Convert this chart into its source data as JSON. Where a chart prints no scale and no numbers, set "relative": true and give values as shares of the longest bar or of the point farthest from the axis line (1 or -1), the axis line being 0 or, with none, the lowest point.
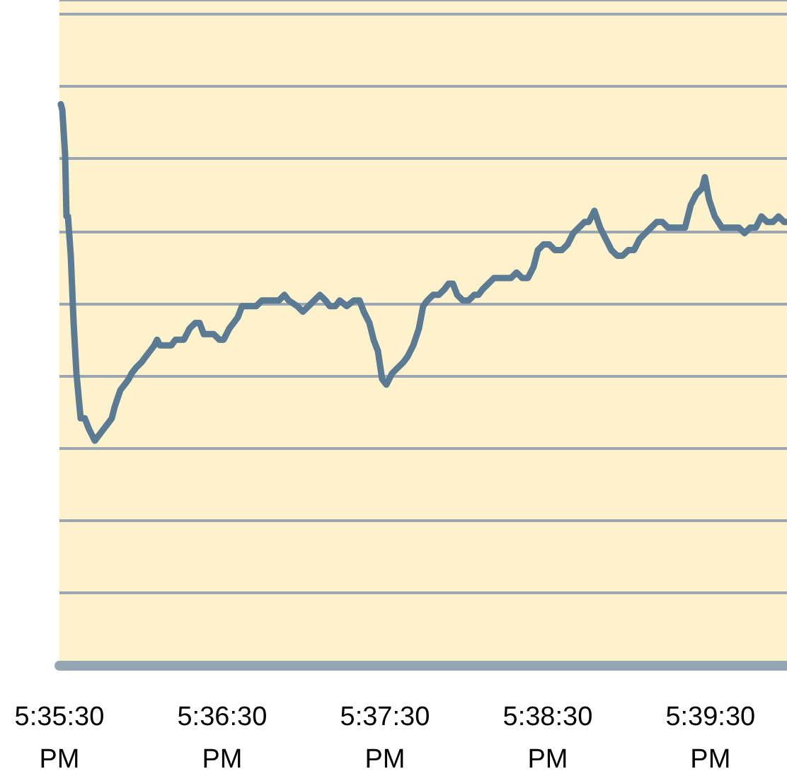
{
  "chart_data": {
    "type": "line",
    "relative": true,
    "grid": "y",
    "marker": "none",
    "line_style": "solid",
    "xlim": [
      17.59167,
      17.66617
    ],
    "xticks": [
      {
        "value": 17.59167,
        "label": "5:35:30 PM"
      },
      {
        "value": 17.60833,
        "label": "5:36:30 PM"
      },
      {
        "value": 17.625,
        "label": "5:37:30 PM"
      },
      {
        "value": 17.64167,
        "label": "5:38:30 PM"
      },
      {
        "value": 17.65833,
        "label": "5:39:30 PM"
      }
    ],
    "x": [
      17.59181,
      17.59196,
      17.59225,
      17.59239,
      17.59254,
      17.59283,
      17.59312,
      17.59341,
      17.59384,
      17.59426,
      17.59471,
      17.59529,
      17.59573,
      17.59616,
      17.5966,
      17.59703,
      17.59732,
      17.5979,
      17.59834,
      17.59877,
      17.59906,
      17.5995,
      17.60008,
      17.60051,
      17.60095,
      17.60138,
      17.60167,
      17.60196,
      17.60254,
      17.60312,
      17.60355,
      17.60399,
      17.60441,
      17.605,
      17.60558,
      17.60602,
      17.60645,
      17.60703,
      17.60747,
      17.60805,
      17.60848,
      17.60906,
      17.6095,
      17.60993,
      17.61037,
      17.61095,
      17.61138,
      17.61182,
      17.6124,
      17.61312,
      17.61355,
      17.61413,
      17.61471,
      17.61515,
      17.61602,
      17.6166,
      17.61718,
      17.61776,
      17.61834,
      17.61892,
      17.61935,
      17.61993,
      17.62037,
      17.62109,
      17.62182,
      17.6224,
      17.62283,
      17.62341,
      17.62384,
      17.62428,
      17.62471,
      17.62515,
      17.62573,
      17.62631,
      17.62689,
      17.62732,
      17.6279,
      17.62848,
      17.62891,
      17.62935,
      17.62993,
      17.63051,
      17.63109,
      17.63152,
      17.63196,
      17.6324,
      17.63298,
      17.63356,
      17.63414,
      17.63457,
      17.635,
      17.63558,
      17.63616,
      17.63674,
      17.63732,
      17.6379,
      17.63848,
      17.63906,
      17.63964,
      17.64022,
      17.64066,
      17.64124,
      17.64182,
      17.6424,
      17.64312,
      17.6437,
      17.64428,
      17.64486,
      17.64544,
      17.64587,
      17.64645,
      17.64703,
      17.64761,
      17.64819,
      17.64877,
      17.64935,
      17.64993,
      17.65051,
      17.65109,
      17.65167,
      17.65225,
      17.65283,
      17.65341,
      17.65399,
      17.65457,
      17.65515,
      17.65573,
      17.65631,
      17.65689,
      17.65747,
      17.65776,
      17.65819,
      17.65877,
      17.6595,
      17.66008,
      17.66066,
      17.66124,
      17.66182,
      17.6624,
      17.66298,
      17.66356,
      17.66414,
      17.66472,
      17.6653,
      17.66588,
      17.66617
    ],
    "series": [
      {
        "color": "#5b7a94",
        "values": [
          1.0,
          0.99,
          0.91,
          0.8,
          0.8,
          0.73,
          0.61,
          0.52,
          0.44,
          0.44,
          0.42,
          0.4,
          0.41,
          0.42,
          0.43,
          0.44,
          0.46,
          0.49,
          0.5,
          0.51,
          0.52,
          0.53,
          0.54,
          0.55,
          0.56,
          0.57,
          0.58,
          0.57,
          0.57,
          0.57,
          0.58,
          0.58,
          0.58,
          0.6,
          0.61,
          0.61,
          0.59,
          0.59,
          0.59,
          0.58,
          0.58,
          0.6,
          0.61,
          0.62,
          0.64,
          0.64,
          0.64,
          0.64,
          0.65,
          0.65,
          0.65,
          0.65,
          0.66,
          0.65,
          0.64,
          0.63,
          0.64,
          0.65,
          0.66,
          0.65,
          0.64,
          0.64,
          0.65,
          0.64,
          0.65,
          0.65,
          0.63,
          0.61,
          0.58,
          0.56,
          0.51,
          0.5,
          0.52,
          0.53,
          0.54,
          0.55,
          0.57,
          0.6,
          0.64,
          0.65,
          0.66,
          0.66,
          0.67,
          0.68,
          0.68,
          0.66,
          0.65,
          0.65,
          0.66,
          0.66,
          0.67,
          0.68,
          0.69,
          0.69,
          0.69,
          0.69,
          0.7,
          0.69,
          0.69,
          0.71,
          0.74,
          0.75,
          0.75,
          0.74,
          0.74,
          0.75,
          0.77,
          0.78,
          0.79,
          0.79,
          0.81,
          0.78,
          0.76,
          0.74,
          0.73,
          0.73,
          0.74,
          0.74,
          0.76,
          0.77,
          0.78,
          0.79,
          0.79,
          0.78,
          0.78,
          0.78,
          0.78,
          0.82,
          0.84,
          0.85,
          0.87,
          0.83,
          0.8,
          0.78,
          0.78,
          0.78,
          0.78,
          0.77,
          0.78,
          0.78,
          0.8,
          0.79,
          0.79,
          0.8,
          0.79,
          0.79
        ]
      }
    ]
  }
}
